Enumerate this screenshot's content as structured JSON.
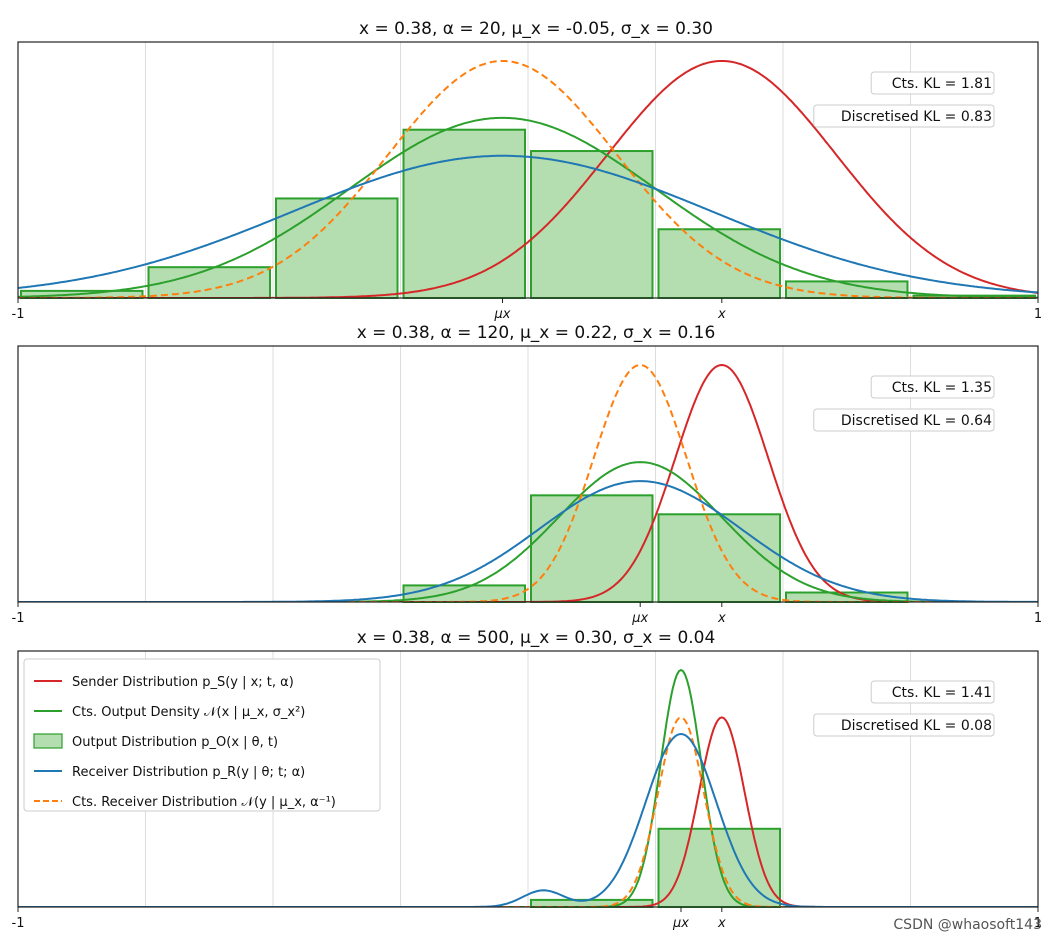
{
  "watermark": "CSDN @whaosoft143",
  "colors": {
    "sender": "#d62728",
    "output": "#2ca02c",
    "output_fill": "#b5deb0",
    "receiver": "#1f77b4",
    "cts_receiver": "#ff7f0e",
    "grid": "#dddddd"
  },
  "chart_data": [
    {
      "type": "line",
      "title": "x = 0.38, α = 20, μ_x = -0.05, σ_x = 0.30",
      "xlim": [
        -1,
        1
      ],
      "ylim": [
        0,
        1.08
      ],
      "grid": true,
      "x_tick_labels": [
        {
          "x": -1,
          "label": "-1"
        },
        {
          "x": 1,
          "label": "1"
        }
      ],
      "marker_ticks": [
        {
          "x": -0.05,
          "label": "μx"
        },
        {
          "x": 0.38,
          "label": "x"
        }
      ],
      "annotations": [
        "Cts. KL = 1.81",
        "Discretised KL = 0.83"
      ],
      "params": {
        "x": 0.38,
        "alpha": 20,
        "mu_x": -0.05,
        "sigma_x": 0.3
      },
      "bins": {
        "edges": [
          -1,
          -0.75,
          -0.5,
          -0.25,
          0,
          0.25,
          0.5,
          0.75,
          1
        ],
        "values": [
          0.03,
          0.13,
          0.42,
          0.71,
          0.62,
          0.29,
          0.07,
          0.01
        ]
      },
      "series": [
        {
          "key": "sender",
          "peak": 1.0
        },
        {
          "key": "output",
          "peak": 0.76
        },
        {
          "key": "cts_receiver",
          "peak": 1.0
        },
        {
          "key": "receiver",
          "peak": 0.6
        }
      ]
    },
    {
      "type": "line",
      "title": "x = 0.38, α = 120, μ_x = 0.22, σ_x = 0.16",
      "xlim": [
        -1,
        1
      ],
      "ylim": [
        0,
        1.08
      ],
      "grid": true,
      "x_tick_labels": [
        {
          "x": -1,
          "label": "-1"
        },
        {
          "x": 1,
          "label": "1"
        }
      ],
      "marker_ticks": [
        {
          "x": 0.22,
          "label": "μx"
        },
        {
          "x": 0.38,
          "label": "x"
        }
      ],
      "annotations": [
        "Cts. KL = 1.35",
        "Discretised KL = 0.64"
      ],
      "params": {
        "x": 0.38,
        "alpha": 120,
        "mu_x": 0.22,
        "sigma_x": 0.16
      },
      "bins": {
        "edges": [
          -1,
          -0.75,
          -0.5,
          -0.25,
          0,
          0.25,
          0.5,
          0.75,
          1
        ],
        "values": [
          0,
          0,
          0,
          0.07,
          0.45,
          0.37,
          0.04,
          0
        ]
      },
      "series": [
        {
          "key": "sender",
          "peak": 1.0
        },
        {
          "key": "output",
          "peak": 0.59
        },
        {
          "key": "cts_receiver",
          "peak": 1.0
        },
        {
          "key": "receiver",
          "peak": 0.51
        }
      ]
    },
    {
      "type": "line",
      "title": "x = 0.38, α = 500, μ_x = 0.30, σ_x = 0.04",
      "xlim": [
        -1,
        1
      ],
      "ylim": [
        0,
        1.08
      ],
      "grid": true,
      "x_tick_labels": [
        {
          "x": -1,
          "label": "-1"
        },
        {
          "x": 1,
          "label": "1"
        }
      ],
      "marker_ticks": [
        {
          "x": 0.3,
          "label": "μx"
        },
        {
          "x": 0.38,
          "label": "x"
        }
      ],
      "annotations": [
        "Cts. KL = 1.41",
        "Discretised KL = 0.08"
      ],
      "params": {
        "x": 0.38,
        "alpha": 500,
        "mu_x": 0.3,
        "sigma_x": 0.04
      },
      "bins": {
        "edges": [
          -1,
          -0.75,
          -0.5,
          -0.25,
          0,
          0.25,
          0.5,
          0.75,
          1
        ],
        "values": [
          0,
          0,
          0,
          0,
          0.03,
          0.33,
          0,
          0
        ]
      },
      "series": [
        {
          "key": "sender",
          "peak": 0.8
        },
        {
          "key": "output",
          "peak": 1.0
        },
        {
          "key": "cts_receiver",
          "peak": 0.8
        },
        {
          "key": "receiver",
          "peak": 0.73
        },
        {
          "key": "receiver_bump",
          "peak": 0.07
        }
      ],
      "legend": {
        "position": "upper-left",
        "entries": [
          {
            "key": "sender",
            "style": "line",
            "label": "Sender Distribution p_S(y | x; t, α)"
          },
          {
            "key": "output",
            "style": "line",
            "label": "Cts. Output Density 𝒩(x | μ_x, σ_x²)"
          },
          {
            "key": "output",
            "style": "patch",
            "label": "Output Distribution p_O(x | θ, t)"
          },
          {
            "key": "receiver",
            "style": "line",
            "label": "Receiver Distribution p_R(y | θ; t; α)"
          },
          {
            "key": "cts_receiver",
            "style": "dashed",
            "label": "Cts. Receiver Distribution 𝒩(y | μ_x, α⁻¹)"
          }
        ]
      }
    }
  ]
}
